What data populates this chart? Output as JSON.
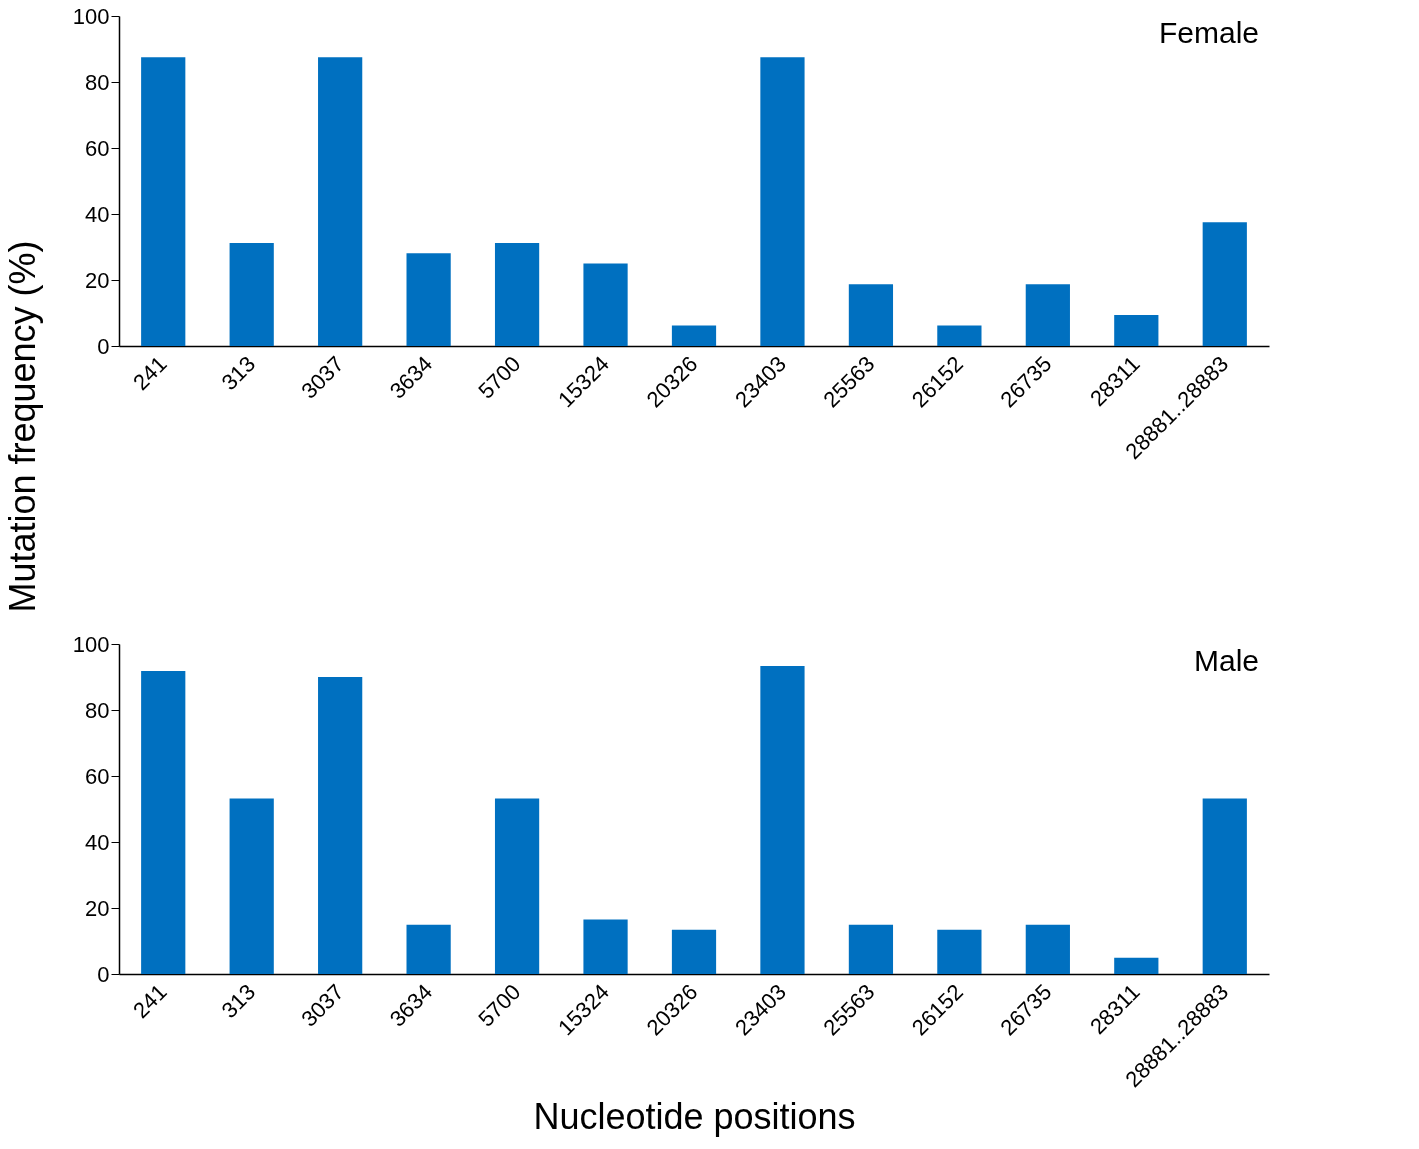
{
  "chart_data": [
    {
      "type": "bar",
      "ylabel": "Mutation frequency (%)",
      "annotations": [
        "Female"
      ],
      "categories": [
        "241",
        "313",
        "3037",
        "3634",
        "5700",
        "15324",
        "20326",
        "23403",
        "25563",
        "26152",
        "26735",
        "28311",
        "28881..28883"
      ],
      "series": [
        {
          "color": "#0070c0",
          "values": [
            87.5,
            31.2,
            87.5,
            28.1,
            31.2,
            25,
            6.2,
            87.5,
            18.7,
            6.2,
            18.7,
            9.4,
            37.5
          ]
        }
      ],
      "ylim": [
        0,
        100
      ],
      "yticks": [
        0,
        20,
        40,
        60,
        80,
        100
      ],
      "grid": false
    },
    {
      "type": "bar",
      "xlabel": "Nucleotide positions",
      "annotations": [
        "Male"
      ],
      "categories": [
        "241",
        "313",
        "3037",
        "3634",
        "5700",
        "15324",
        "20326",
        "23403",
        "25563",
        "26152",
        "26735",
        "28311",
        "28881..28883"
      ],
      "series": [
        {
          "color": "#0070c0",
          "values": [
            91.8,
            53.2,
            90.0,
            14.9,
            53.2,
            16.5,
            13.4,
            93.3,
            14.9,
            13.4,
            14.9,
            4.9,
            53.2
          ]
        }
      ],
      "ylim": [
        0,
        100
      ],
      "yticks": [
        0,
        20,
        40,
        60,
        80,
        100
      ],
      "grid": false
    }
  ]
}
